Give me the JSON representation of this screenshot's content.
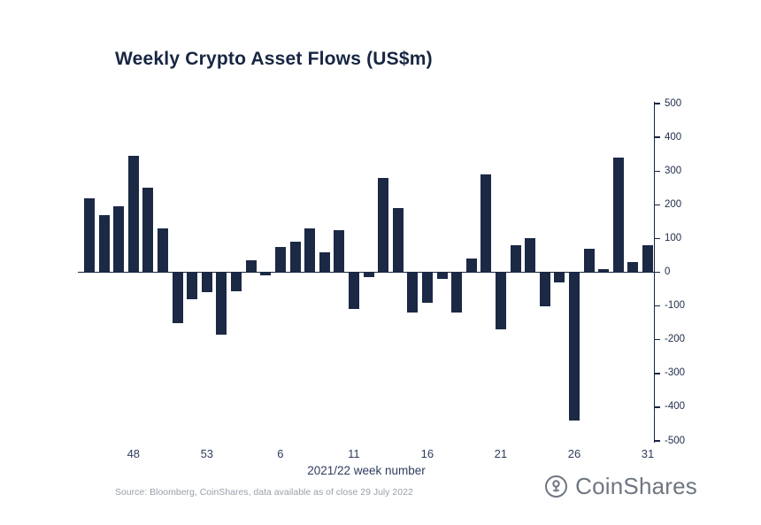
{
  "chart_data": {
    "type": "bar",
    "title": "Weekly Crypto Asset Flows (US$m)",
    "xlabel": "2021/22 week number",
    "ylabel": "",
    "ylim": [
      -500,
      500
    ],
    "y_ticks": [
      500,
      400,
      300,
      200,
      100,
      0,
      -100,
      -200,
      -300,
      -400,
      -500
    ],
    "x_tick_labels": [
      "48",
      "53",
      "6",
      "11",
      "16",
      "21",
      "26",
      "31"
    ],
    "x_tick_indices": [
      3,
      8,
      13,
      18,
      23,
      28,
      33,
      38
    ],
    "y_axis_position": "right",
    "grid": false,
    "legend": false,
    "bar_color": "#1b2945",
    "axis_color": "#172642",
    "values": [
      220,
      170,
      195,
      345,
      250,
      130,
      -150,
      -80,
      -60,
      -185,
      -55,
      35,
      -10,
      75,
      90,
      130,
      60,
      125,
      -110,
      -15,
      280,
      190,
      -120,
      -90,
      -20,
      -120,
      40,
      290,
      -170,
      80,
      100,
      -100,
      -30,
      -440,
      70,
      10,
      340,
      30,
      80
    ]
  },
  "footer": {
    "source": "Source: Bloomberg, CoinShares, data available as of close 29 July 2022",
    "logo_text": "CoinShares"
  }
}
